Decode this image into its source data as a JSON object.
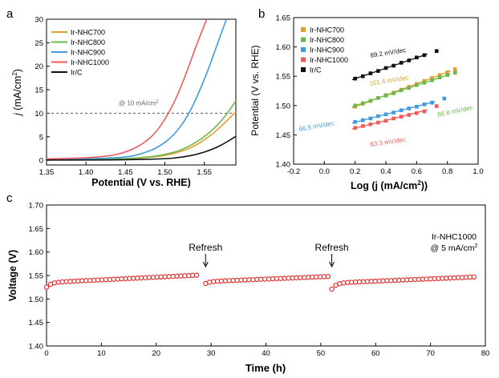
{
  "chart_data": [
    {
      "panel": "a",
      "type": "line",
      "xlabel": "Potential (V vs. RHE)",
      "ylabel_prefix": "j",
      "ylabel_rest": " (mA/cm",
      "ylabel_sup": "2",
      "ylabel_end": ")",
      "xlim": [
        1.35,
        1.59
      ],
      "ylim": [
        -1,
        30
      ],
      "xticks": [
        "1.35",
        "1.40",
        "1.45",
        "1.50",
        "1.55"
      ],
      "yticks": [
        "0",
        "5",
        "10",
        "15",
        "20",
        "25",
        "30"
      ],
      "reference_line": {
        "y": 10,
        "label": "@ 10 mA/cm",
        "label_sup": "2"
      },
      "series": [
        {
          "name": "Ir-NHC700",
          "color": "#e0a030",
          "x": [
            1.35,
            1.4,
            1.45,
            1.48,
            1.5,
            1.52,
            1.54,
            1.56,
            1.575,
            1.59
          ],
          "y": [
            0.1,
            0.15,
            0.3,
            0.6,
            1.0,
            1.8,
            3.2,
            5.5,
            7.8,
            10.3
          ]
        },
        {
          "name": "Ir-NHC800",
          "color": "#6cb84a",
          "x": [
            1.35,
            1.4,
            1.45,
            1.48,
            1.5,
            1.52,
            1.54,
            1.56,
            1.575,
            1.59
          ],
          "y": [
            0.1,
            0.15,
            0.3,
            0.7,
            1.2,
            2.1,
            3.8,
            6.3,
            9.0,
            12.6
          ]
        },
        {
          "name": "Ir-NHC900",
          "color": "#3f9be0",
          "x": [
            1.35,
            1.4,
            1.45,
            1.47,
            1.49,
            1.51,
            1.53,
            1.55,
            1.565,
            1.578
          ],
          "y": [
            0.2,
            0.3,
            0.6,
            1.3,
            2.6,
            5.0,
            9.5,
            17.0,
            24.0,
            30.0
          ]
        },
        {
          "name": "Ir-NHC1000",
          "color": "#ef5b5b",
          "x": [
            1.35,
            1.4,
            1.43,
            1.45,
            1.47,
            1.49,
            1.51,
            1.525,
            1.54,
            1.553
          ],
          "y": [
            0.3,
            0.5,
            0.9,
            1.7,
            3.2,
            6.0,
            11.5,
            17.5,
            24.5,
            30.0
          ]
        },
        {
          "name": "Ir/C",
          "color": "#111111",
          "x": [
            1.35,
            1.4,
            1.45,
            1.5,
            1.52,
            1.54,
            1.56,
            1.575,
            1.59
          ],
          "y": [
            0.05,
            0.05,
            0.1,
            0.3,
            0.6,
            1.2,
            2.3,
            3.5,
            5.1
          ]
        }
      ]
    },
    {
      "panel": "b",
      "type": "scatter",
      "xlabel": "Log (j (mA/cm",
      "xlabel_sup": "2",
      "xlabel_end": "))",
      "ylabel": "Potential (V vs. RHE)",
      "xlim": [
        -0.2,
        1.0
      ],
      "ylim": [
        1.4,
        1.65
      ],
      "xticks": [
        "-0.2",
        "0.0",
        "0.2",
        "0.4",
        "0.6",
        "0.8",
        "1.0"
      ],
      "yticks": [
        "1.40",
        "1.45",
        "1.50",
        "1.55",
        "1.60",
        "1.65"
      ],
      "series": [
        {
          "name": "Ir-NHC700",
          "color": "#e0a030",
          "slope_label": "101.4 mV/dec",
          "x": [
            0.2,
            0.25,
            0.3,
            0.35,
            0.4,
            0.45,
            0.5,
            0.55,
            0.6,
            0.65,
            0.7,
            0.75,
            0.8,
            0.85
          ],
          "y": [
            1.498,
            1.503,
            1.508,
            1.513,
            1.518,
            1.522,
            1.527,
            1.532,
            1.537,
            1.542,
            1.547,
            1.552,
            1.557,
            1.562
          ]
        },
        {
          "name": "Ir-NHC800",
          "color": "#6cb84a",
          "slope_label": "86.8 mV/dec",
          "x": [
            0.2,
            0.25,
            0.3,
            0.35,
            0.4,
            0.45,
            0.5,
            0.55,
            0.6,
            0.65,
            0.7,
            0.75,
            0.8,
            0.85
          ],
          "y": [
            1.5,
            1.504,
            1.508,
            1.513,
            1.517,
            1.521,
            1.526,
            1.53,
            1.535,
            1.539,
            1.543,
            1.548,
            1.552,
            1.556
          ]
        },
        {
          "name": "Ir-NHC900",
          "color": "#3f9be0",
          "slope_label": "66.5 mV/dec",
          "x": [
            0.2,
            0.25,
            0.3,
            0.35,
            0.4,
            0.45,
            0.5,
            0.55,
            0.6,
            0.65,
            0.7,
            0.78
          ],
          "y": [
            1.472,
            1.475,
            1.478,
            1.482,
            1.485,
            1.488,
            1.492,
            1.495,
            1.498,
            1.502,
            1.505,
            1.512
          ]
        },
        {
          "name": "Ir-NHC1000",
          "color": "#ef5b5b",
          "slope_label": "63.3 mV/dec",
          "x": [
            0.2,
            0.25,
            0.3,
            0.35,
            0.4,
            0.45,
            0.5,
            0.55,
            0.6,
            0.65,
            0.73
          ],
          "y": [
            1.462,
            1.465,
            1.468,
            1.471,
            1.474,
            1.478,
            1.481,
            1.484,
            1.487,
            1.49,
            1.499
          ]
        },
        {
          "name": "Ir/C",
          "color": "#111111",
          "slope_label": "89.2 mV/dec",
          "x": [
            0.2,
            0.25,
            0.3,
            0.35,
            0.4,
            0.45,
            0.5,
            0.55,
            0.6,
            0.65,
            0.73
          ],
          "y": [
            1.546,
            1.55,
            1.555,
            1.559,
            1.564,
            1.568,
            1.573,
            1.577,
            1.582,
            1.586,
            1.593
          ]
        }
      ]
    },
    {
      "panel": "c",
      "type": "scatter",
      "xlabel": "Time (h)",
      "ylabel": "Voltage (V)",
      "xlim": [
        0,
        80
      ],
      "ylim": [
        1.4,
        1.7
      ],
      "xticks": [
        "0",
        "10",
        "20",
        "30",
        "40",
        "50",
        "60",
        "70",
        "80"
      ],
      "yticks": [
        "1.40",
        "1.45",
        "1.50",
        "1.55",
        "1.60",
        "1.65",
        "1.70"
      ],
      "color": "#e03030",
      "legend_line1": "Ir-NHC1000",
      "legend_line2": "@ 5 mA/cm",
      "legend_sup": "2",
      "annotations": [
        {
          "text": "Refresh",
          "x": 29
        },
        {
          "text": "Refresh",
          "x": 52
        }
      ],
      "segments": [
        {
          "t_start": 0,
          "t_end": 28,
          "v_start": 1.525,
          "v_settle": 1.535,
          "v_end": 1.551
        },
        {
          "t_start": 29,
          "t_end": 51.5,
          "v_start": 1.533,
          "v_settle": 1.537,
          "v_end": 1.548
        },
        {
          "t_start": 52,
          "t_end": 78.5,
          "v_start": 1.521,
          "v_settle": 1.534,
          "v_end": 1.547
        }
      ]
    }
  ]
}
